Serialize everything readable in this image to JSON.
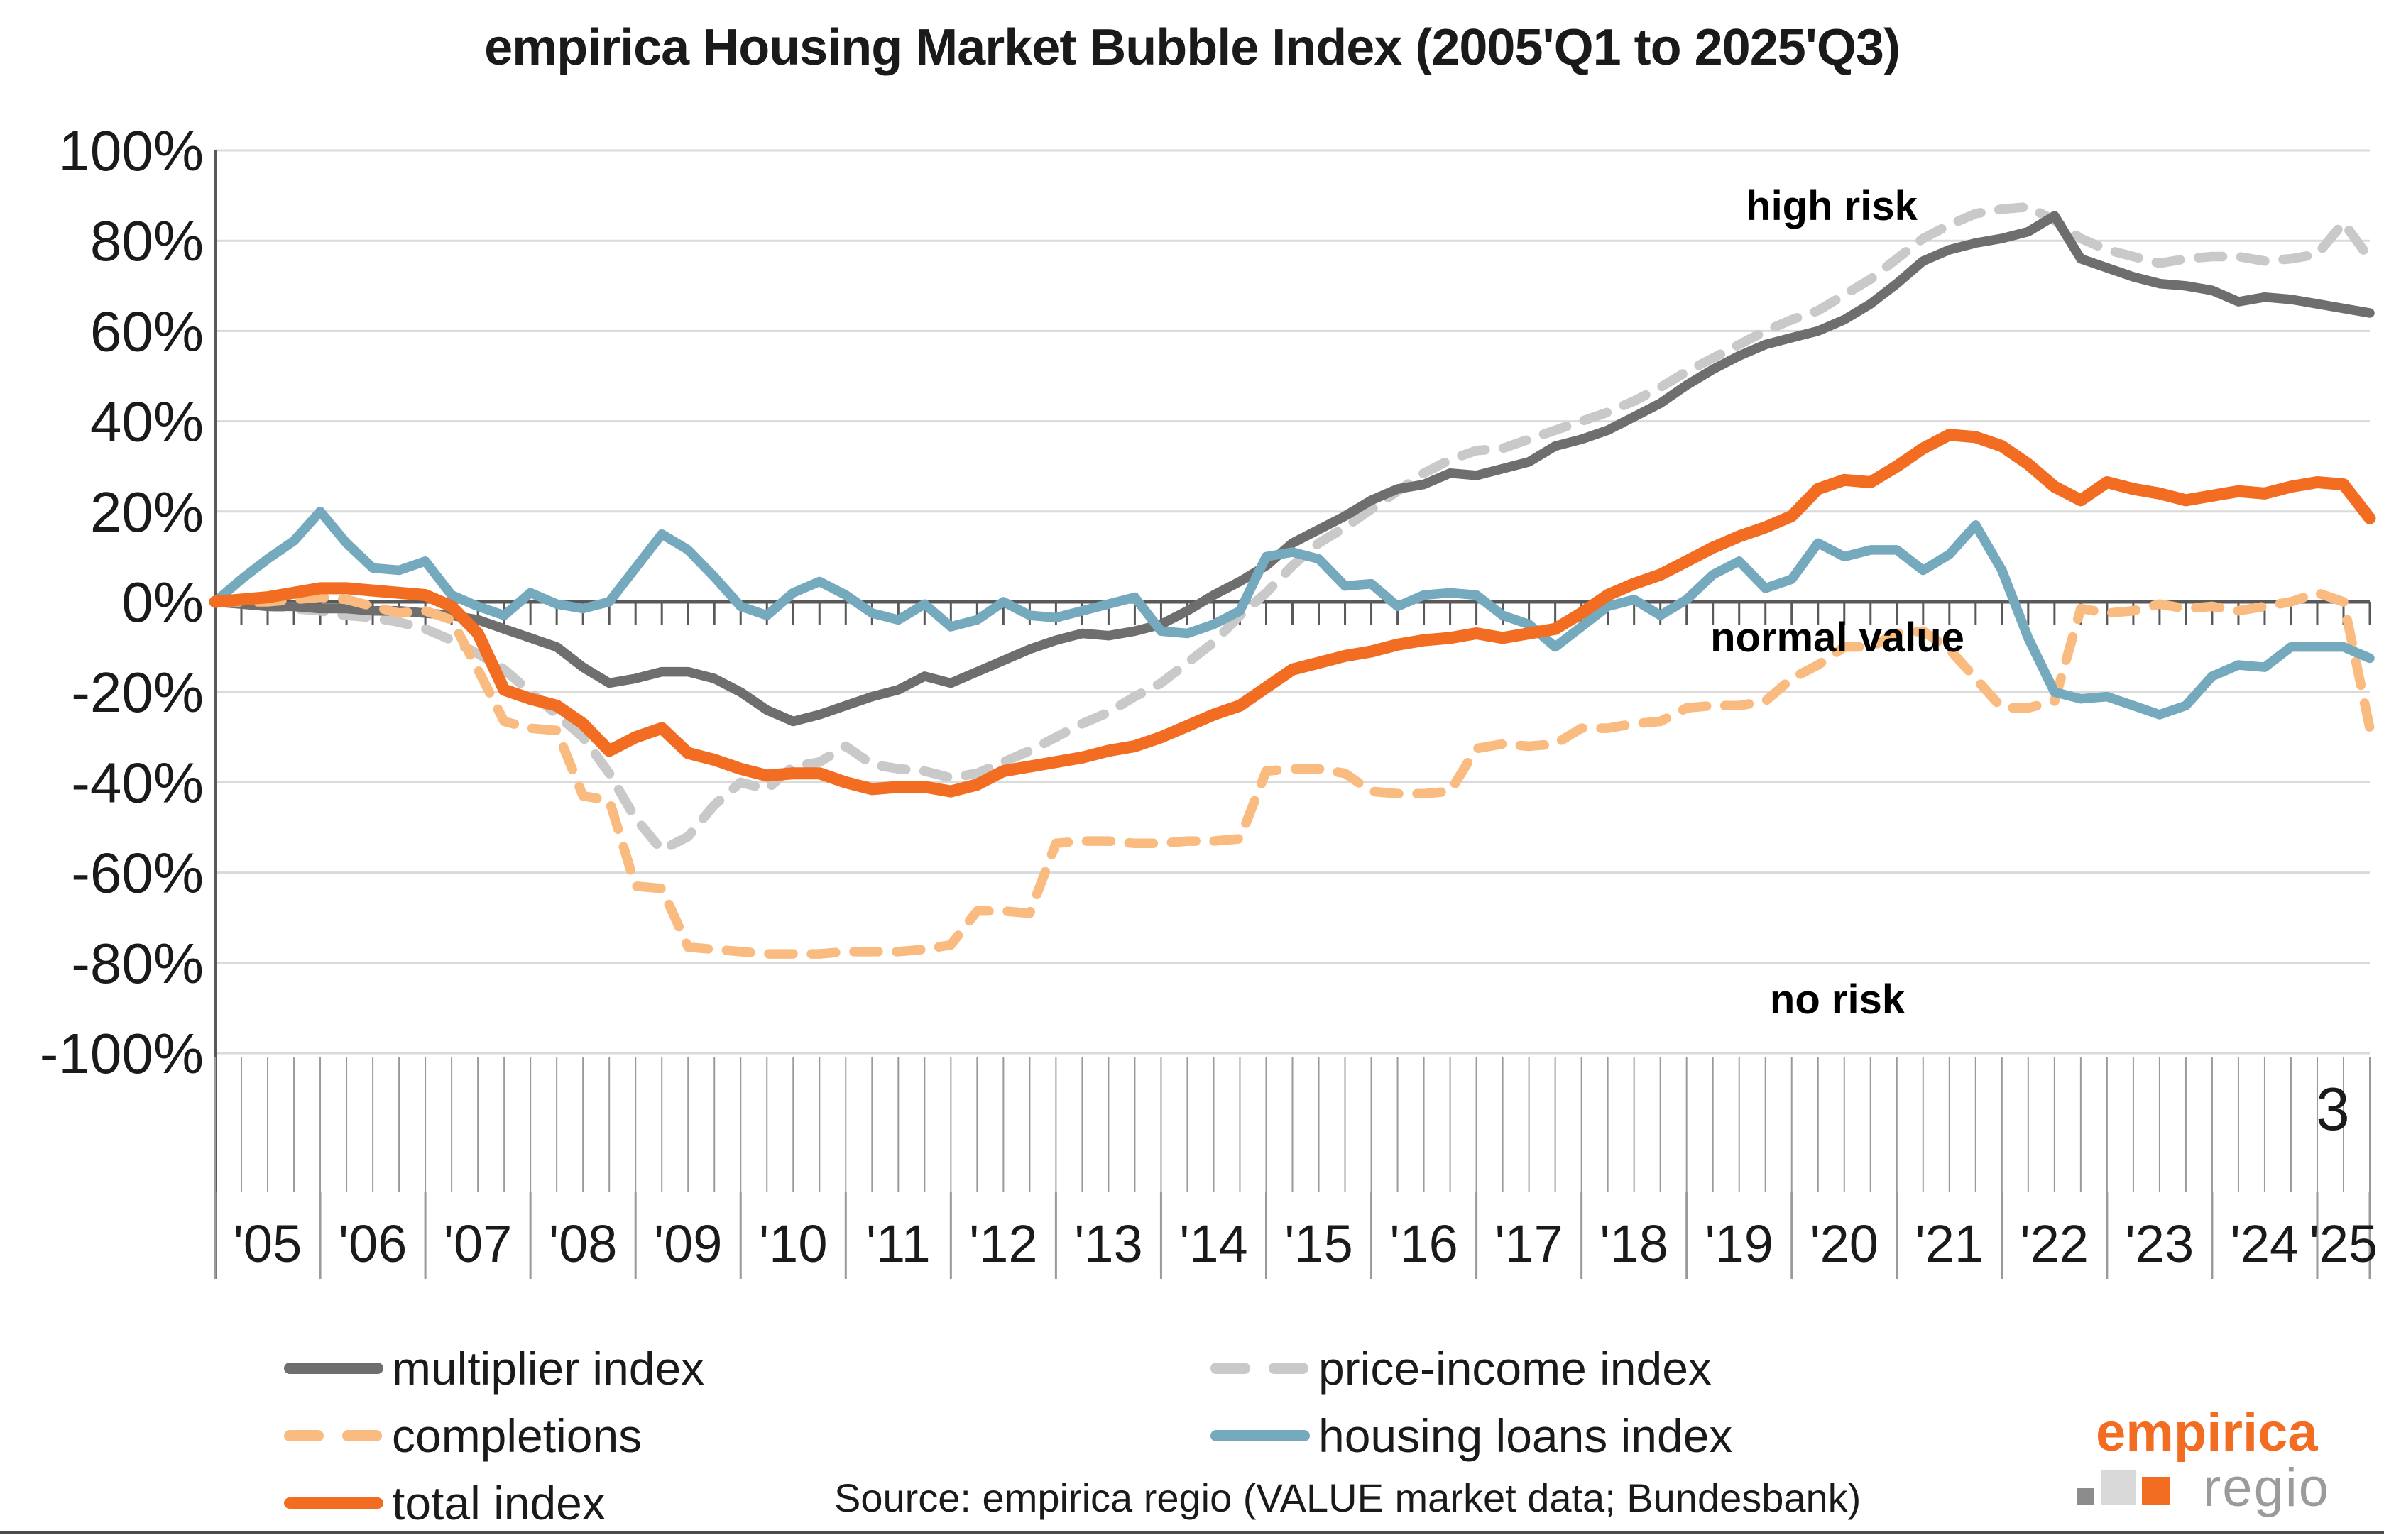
{
  "title": "empirica Housing Market Bubble Index (2005'Q1 to 2025'Q3)",
  "legend": {
    "multiplier": "multiplier index",
    "price_income": "price-income index",
    "completions": "completions",
    "housing_loans": "housing loans index",
    "total": "total index"
  },
  "annotations": {
    "high_risk": "high risk",
    "normal_value": "normal value",
    "no_risk": "no risk",
    "corner_number": "3"
  },
  "source": "Source: empirica regio (VALUE market data; Bundesbank)",
  "logo": {
    "line1": "empirica",
    "line2": "regio"
  },
  "colors": {
    "orange": "#F26C21",
    "light_orange": "#FABB80",
    "teal": "#74A9BE",
    "dark_gray": "#6E6E6E",
    "light_gray": "#C9C9C9",
    "gridline": "#DADADA",
    "axis": "#595959",
    "band_line": "#9A9A9A",
    "text": "#1A1A1A",
    "regio_gray": "#9B9B9B",
    "logo_squares": [
      "#8C8C8C",
      "#D9D9D9",
      "#F26C21"
    ]
  },
  "chart_data": {
    "type": "line",
    "title": "empirica Housing Market Bubble Index (2005'Q1 to 2025'Q3)",
    "x_unit": "quarter",
    "x_start": "2005Q1",
    "x_end": "2025Q3",
    "points_per_year": 4,
    "ylim": [
      -100,
      100
    ],
    "y_tick_step": 20,
    "y_tick_labels": [
      "100%",
      "80%",
      "60%",
      "40%",
      "20%",
      "0%",
      "-20%",
      "-40%",
      "-60%",
      "-80%",
      "-100%"
    ],
    "year_labels": [
      "'05",
      "'06",
      "'07",
      "'08",
      "'09",
      "'10",
      "'11",
      "'12",
      "'13",
      "'14",
      "'15",
      "'16",
      "'17",
      "'18",
      "'19",
      "'20",
      "'21",
      "'22",
      "'23",
      "'24",
      "'25"
    ],
    "grid": true,
    "legend_position": "bottom",
    "series": [
      {
        "key": "price_income",
        "name": "price-income index",
        "color": "#C9C9C9",
        "dash": true,
        "values": [
          0,
          -0.5,
          -1,
          -1.5,
          -2,
          -3,
          -3.5,
          -4.5,
          -6,
          -8.5,
          -11.5,
          -15,
          -20,
          -25,
          -30,
          -38,
          -48,
          -55,
          -52,
          -45,
          -40,
          -41.5,
          -36.5,
          -35.5,
          -32,
          -36,
          -37,
          -37.5,
          -39,
          -38,
          -35.5,
          -33,
          -30,
          -27,
          -24.5,
          -21,
          -18,
          -13.5,
          -9,
          -3,
          2,
          8,
          13,
          16.5,
          20.5,
          24.5,
          28.5,
          31.5,
          33.5,
          34,
          36,
          38,
          40,
          42,
          44.5,
          47.5,
          51,
          54,
          57,
          60,
          62.5,
          64.5,
          68,
          71.5,
          76,
          80.5,
          83.5,
          86,
          87,
          87.5,
          84.5,
          80.5,
          78,
          76.5,
          75,
          76,
          76.5,
          76.5,
          75.5,
          76,
          77,
          84,
          76
        ]
      },
      {
        "key": "multiplier",
        "name": "multiplier index",
        "color": "#6E6E6E",
        "dash": false,
        "values": [
          0,
          -0.5,
          -1,
          -1,
          -1.5,
          -1.5,
          -2,
          -2,
          -2.5,
          -3,
          -4,
          -6,
          -8,
          -10,
          -14.5,
          -18,
          -17,
          -15.5,
          -15.5,
          -17,
          -20,
          -24,
          -26.5,
          -25,
          -23,
          -21,
          -19.5,
          -16.5,
          -18,
          -15.5,
          -13,
          -10.5,
          -8.5,
          -7,
          -7.5,
          -6.5,
          -5,
          -2,
          1.5,
          4.5,
          8,
          13,
          16,
          19,
          22.5,
          25,
          26,
          28.5,
          28,
          29.5,
          31,
          34.5,
          36,
          38,
          41,
          44,
          48,
          51.5,
          54.5,
          57,
          58.5,
          60,
          62.5,
          66,
          70.5,
          75.5,
          78,
          79.5,
          80.5,
          82,
          85.5,
          76,
          74,
          72,
          70.5,
          70,
          69,
          66.5,
          67.5,
          67,
          66,
          65,
          64
        ]
      },
      {
        "key": "completions",
        "name": "completions",
        "color": "#FABB80",
        "dash": true,
        "values": [
          0,
          0,
          0,
          0.5,
          1,
          0.5,
          -1,
          -2.5,
          -2,
          -4,
          -15,
          -26.5,
          -28,
          -28.5,
          -43,
          -44,
          -63,
          -63.5,
          -76.5,
          -77,
          -77.5,
          -78,
          -78,
          -78,
          -77.5,
          -77.5,
          -77.5,
          -77,
          -76,
          -68.5,
          -68.5,
          -69,
          -53.5,
          -53,
          -53,
          -53.5,
          -53.5,
          -53,
          -53,
          -52.5,
          -37.5,
          -37,
          -37,
          -38,
          -42,
          -42.5,
          -42.5,
          -42,
          -32.5,
          -31.5,
          -32,
          -31.5,
          -28,
          -28,
          -27,
          -26.5,
          -23.5,
          -23,
          -23,
          -22,
          -17,
          -14,
          -10,
          -10,
          -7,
          -6.5,
          -10.5,
          -17,
          -23.5,
          -23.5,
          -22,
          -1.5,
          -2.5,
          -2,
          -0.5,
          -1.5,
          -1,
          -2,
          -1,
          0,
          2,
          0,
          -28
        ]
      },
      {
        "key": "housing_loans",
        "name": "housing loans index",
        "color": "#74A9BE",
        "dash": false,
        "values": [
          0,
          5,
          9.5,
          13.5,
          20,
          13,
          7.5,
          7,
          9,
          1.5,
          -1,
          -3,
          2,
          -0.5,
          -1.5,
          0,
          7.5,
          15,
          11.5,
          5.5,
          -1,
          -3,
          2,
          4.5,
          1.5,
          -2.5,
          -4,
          -0.5,
          -5.5,
          -4,
          0,
          -3,
          -3.5,
          -2,
          -0.5,
          1,
          -6.5,
          -7,
          -5,
          -2,
          10,
          11,
          9.5,
          3.5,
          4,
          -1,
          1.5,
          2,
          1.5,
          -3,
          -5,
          -10,
          -5.5,
          -1,
          0.5,
          -3,
          0.5,
          6,
          9,
          3,
          5,
          13,
          10,
          11.5,
          11.5,
          7,
          10.5,
          17,
          7,
          -8,
          -20,
          -21.5,
          -21,
          -23,
          -25,
          -23,
          -16.5,
          -14,
          -14.5,
          -10,
          -10,
          -10,
          -12.5
        ]
      },
      {
        "key": "total",
        "name": "total index",
        "color": "#F26C21",
        "dash": false,
        "values": [
          0,
          0.5,
          1,
          2,
          3,
          3,
          2.5,
          2,
          1.5,
          -1,
          -7,
          -19.5,
          -21.5,
          -23,
          -27,
          -33,
          -30,
          -28,
          -33.5,
          -35,
          -37,
          -38.5,
          -38,
          -38,
          -40,
          -41.5,
          -41,
          -41,
          -42,
          -40.5,
          -37.5,
          -36.5,
          -35.5,
          -34.5,
          -33,
          -32,
          -30,
          -27.5,
          -25,
          -23,
          -19,
          -15,
          -13.5,
          -12,
          -11,
          -9.5,
          -8.5,
          -8,
          -7,
          -8,
          -7,
          -6,
          -2.5,
          1.5,
          4,
          6,
          9,
          12,
          14.5,
          16.5,
          19,
          25,
          27,
          26.5,
          30,
          34,
          37,
          36.5,
          34.5,
          30.5,
          25.5,
          22.5,
          26.5,
          25,
          24,
          22.5,
          23.5,
          24.5,
          24,
          25.5,
          26.5,
          26,
          18.5
        ]
      }
    ]
  }
}
